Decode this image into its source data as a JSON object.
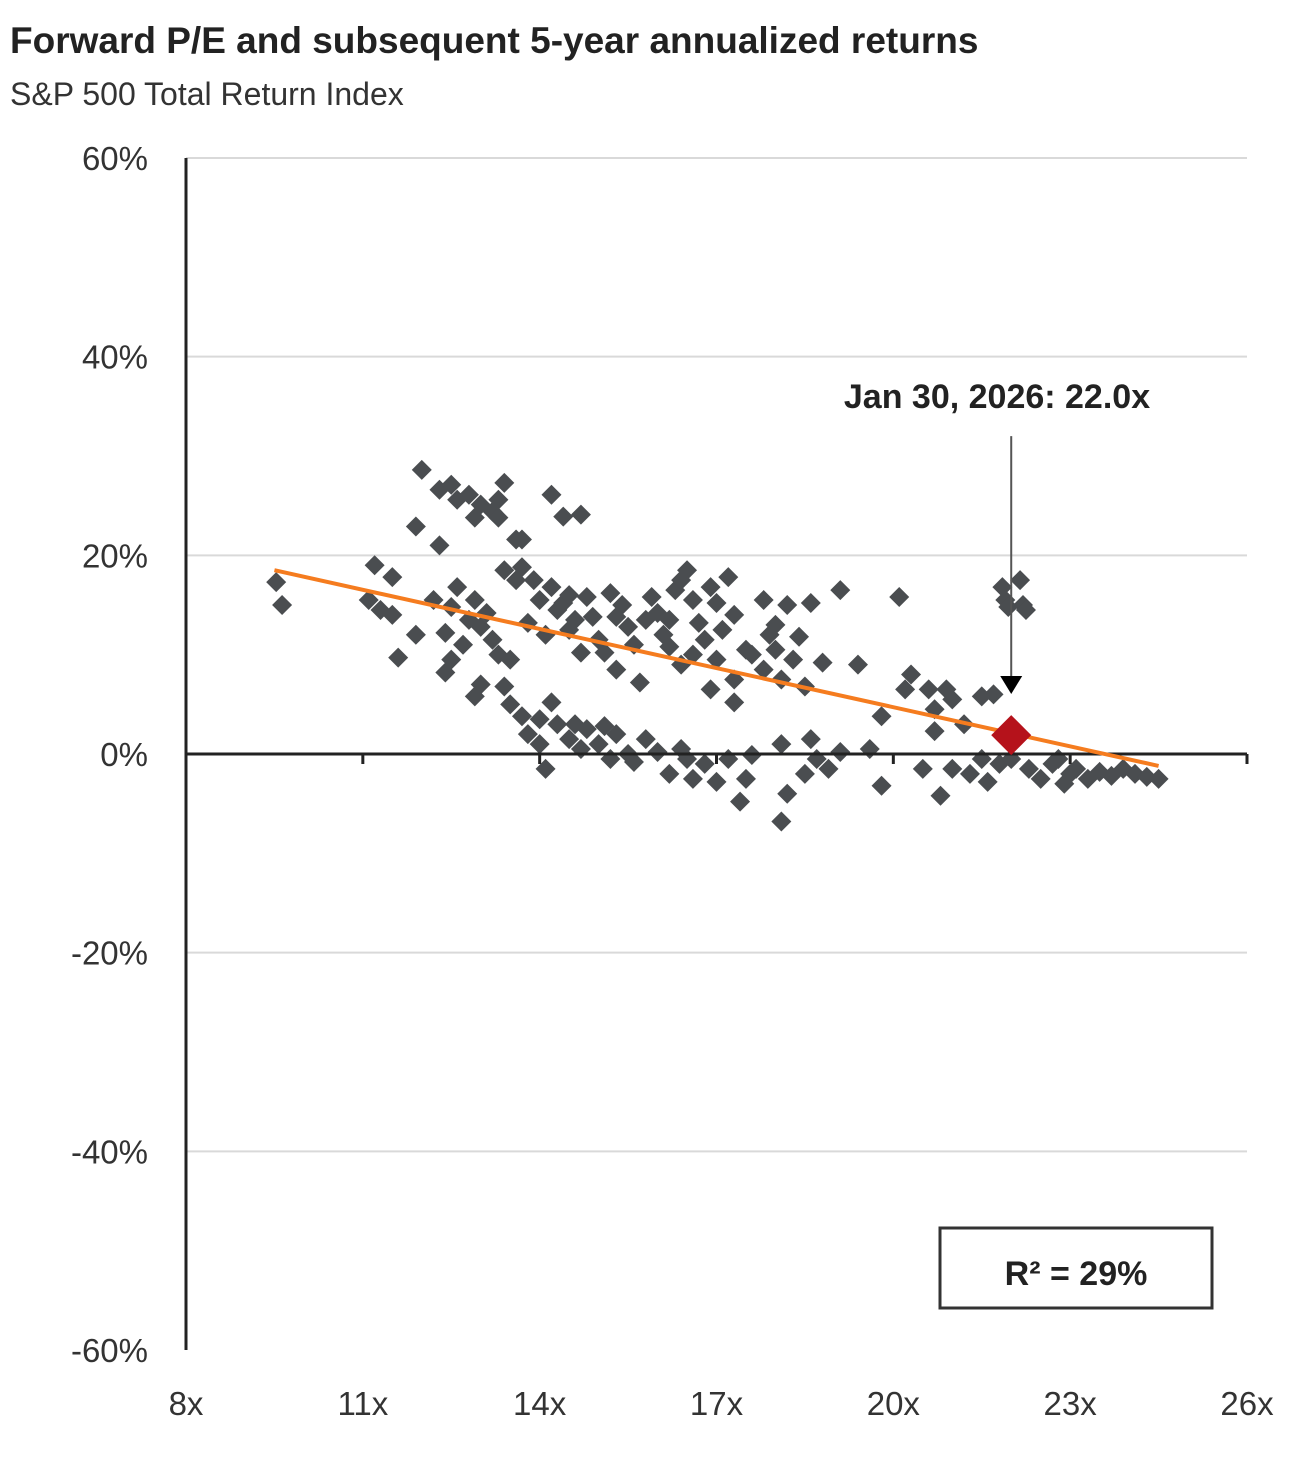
{
  "chart_data": {
    "type": "scatter",
    "title": "Forward P/E and subsequent 5-year annualized returns",
    "subtitle": "S&P 500 Total Return Index",
    "xlabel": "",
    "ylabel": "",
    "xlim": [
      8,
      26
    ],
    "ylim": [
      -60,
      60
    ],
    "x_ticks": [
      8,
      11,
      14,
      17,
      20,
      23,
      26
    ],
    "x_tick_labels": [
      "8x",
      "11x",
      "14x",
      "17x",
      "20x",
      "23x",
      "26x"
    ],
    "y_ticks": [
      60,
      40,
      20,
      0,
      -20,
      -40,
      -60
    ],
    "y_tick_labels": [
      "60%",
      "40%",
      "20%",
      "0%",
      "-20%",
      "-40%",
      "-60%"
    ],
    "grid": true,
    "colors": {
      "points": "#4a4d50",
      "highlight": "#b5121b",
      "trend": "#f57c1f",
      "grid": "#d9d9d9",
      "axis": "#222222"
    },
    "trendline": {
      "x": [
        9.5,
        24.5
      ],
      "y": [
        18.5,
        -1.2
      ]
    },
    "annotation": {
      "text": "Jan 30, 2026:  22.0x",
      "x": 22.0,
      "y": 1.9,
      "arrow_from_y": 32
    },
    "highlight_point": {
      "x": 22.0,
      "y": 1.9
    },
    "r_squared_label": "R²  = 29%",
    "points": [
      [
        9.53,
        17.3
      ],
      [
        9.63,
        15.0
      ],
      [
        11.2,
        19.0
      ],
      [
        11.5,
        17.8
      ],
      [
        11.1,
        15.5
      ],
      [
        11.3,
        14.5
      ],
      [
        11.5,
        14.0
      ],
      [
        11.6,
        9.7
      ],
      [
        11.9,
        22.9
      ],
      [
        12.0,
        28.6
      ],
      [
        12.3,
        21.0
      ],
      [
        12.4,
        8.2
      ],
      [
        11.9,
        12.0
      ],
      [
        12.3,
        26.6
      ],
      [
        12.5,
        27.1
      ],
      [
        12.6,
        25.6
      ],
      [
        12.8,
        26.1
      ],
      [
        13.0,
        25.1
      ],
      [
        13.2,
        24.4
      ],
      [
        13.3,
        25.6
      ],
      [
        13.4,
        27.3
      ],
      [
        13.3,
        23.8
      ],
      [
        13.6,
        21.6
      ],
      [
        13.7,
        21.6
      ],
      [
        12.9,
        23.8
      ],
      [
        14.2,
        26.1
      ],
      [
        14.4,
        23.9
      ],
      [
        14.7,
        24.1
      ],
      [
        12.2,
        15.5
      ],
      [
        12.5,
        14.8
      ],
      [
        12.8,
        13.5
      ],
      [
        12.6,
        16.8
      ],
      [
        12.9,
        15.5
      ],
      [
        13.1,
        14.2
      ],
      [
        13.2,
        11.5
      ],
      [
        12.7,
        11.0
      ],
      [
        13.0,
        12.8
      ],
      [
        12.4,
        12.2
      ],
      [
        13.3,
        10.0
      ],
      [
        13.4,
        18.5
      ],
      [
        13.6,
        17.5
      ],
      [
        13.7,
        18.8
      ],
      [
        13.9,
        17.5
      ],
      [
        14.0,
        15.5
      ],
      [
        14.2,
        16.8
      ],
      [
        14.3,
        14.5
      ],
      [
        14.4,
        15.2
      ],
      [
        14.6,
        13.5
      ],
      [
        14.5,
        16.0
      ],
      [
        14.8,
        15.8
      ],
      [
        14.9,
        13.8
      ],
      [
        15.0,
        11.5
      ],
      [
        15.1,
        10.2
      ],
      [
        15.2,
        16.2
      ],
      [
        15.4,
        15.0
      ],
      [
        15.5,
        12.8
      ],
      [
        15.6,
        11.0
      ],
      [
        15.8,
        13.5
      ],
      [
        15.9,
        15.8
      ],
      [
        16.0,
        14.2
      ],
      [
        16.1,
        12.0
      ],
      [
        16.2,
        10.8
      ],
      [
        16.3,
        16.5
      ],
      [
        16.4,
        17.5
      ],
      [
        16.5,
        18.5
      ],
      [
        16.6,
        15.5
      ],
      [
        16.7,
        13.2
      ],
      [
        16.8,
        11.5
      ],
      [
        16.9,
        16.8
      ],
      [
        17.0,
        15.2
      ],
      [
        17.1,
        12.5
      ],
      [
        17.2,
        17.8
      ],
      [
        17.3,
        14.0
      ],
      [
        17.0,
        9.5
      ],
      [
        17.3,
        7.5
      ],
      [
        17.5,
        10.5
      ],
      [
        17.8,
        15.5
      ],
      [
        17.9,
        12.0
      ],
      [
        18.0,
        10.5
      ],
      [
        18.2,
        15.0
      ],
      [
        18.0,
        13.0
      ],
      [
        18.3,
        9.5
      ],
      [
        18.5,
        6.8
      ],
      [
        18.6,
        15.2
      ],
      [
        19.1,
        16.5
      ],
      [
        18.8,
        9.2
      ],
      [
        19.4,
        9.0
      ],
      [
        19.8,
        3.8
      ],
      [
        20.1,
        15.8
      ],
      [
        20.3,
        8.0
      ],
      [
        20.2,
        6.5
      ],
      [
        20.6,
        6.5
      ],
      [
        20.9,
        6.5
      ],
      [
        20.7,
        4.5
      ],
      [
        21.0,
        5.5
      ],
      [
        21.5,
        5.8
      ],
      [
        21.7,
        6.0
      ],
      [
        20.7,
        2.3
      ],
      [
        21.2,
        3.0
      ],
      [
        13.8,
        13.2
      ],
      [
        14.1,
        12.0
      ],
      [
        14.7,
        10.2
      ],
      [
        15.3,
        8.5
      ],
      [
        15.7,
        7.2
      ],
      [
        16.4,
        9.0
      ],
      [
        16.9,
        6.5
      ],
      [
        17.3,
        5.2
      ],
      [
        13.0,
        7.0
      ],
      [
        12.9,
        5.8
      ],
      [
        13.4,
        6.8
      ],
      [
        17.6,
        10.0
      ],
      [
        17.8,
        8.5
      ],
      [
        16.2,
        13.5
      ],
      [
        15.3,
        13.8
      ],
      [
        12.5,
        9.5
      ],
      [
        13.5,
        9.5
      ],
      [
        14.5,
        12.5
      ],
      [
        16.6,
        10.0
      ],
      [
        18.4,
        11.8
      ],
      [
        18.1,
        7.5
      ],
      [
        13.5,
        5.0
      ],
      [
        13.7,
        3.8
      ],
      [
        13.8,
        2.0
      ],
      [
        14.0,
        1.0
      ],
      [
        14.1,
        -1.5
      ],
      [
        14.2,
        5.2
      ],
      [
        14.3,
        3.0
      ],
      [
        14.5,
        1.5
      ],
      [
        14.7,
        0.5
      ],
      [
        14.8,
        2.5
      ],
      [
        15.0,
        1.0
      ],
      [
        15.2,
        -0.5
      ],
      [
        15.3,
        2.0
      ],
      [
        15.5,
        0.0
      ],
      [
        15.6,
        -0.8
      ],
      [
        15.8,
        1.5
      ],
      [
        16.0,
        0.2
      ],
      [
        16.2,
        -2.0
      ],
      [
        16.4,
        0.5
      ],
      [
        16.6,
        -2.5
      ],
      [
        16.8,
        -1.0
      ],
      [
        17.0,
        -2.8
      ],
      [
        17.2,
        -0.5
      ],
      [
        17.4,
        -4.8
      ],
      [
        17.5,
        -2.5
      ],
      [
        17.6,
        -0.1
      ],
      [
        18.1,
        1.0
      ],
      [
        18.2,
        -4.0
      ],
      [
        18.1,
        -6.8
      ],
      [
        18.5,
        -2.0
      ],
      [
        18.7,
        -0.5
      ],
      [
        18.9,
        -1.5
      ],
      [
        19.1,
        0.2
      ],
      [
        19.6,
        0.5
      ],
      [
        19.8,
        -3.2
      ],
      [
        14.6,
        3.0
      ],
      [
        15.1,
        2.8
      ],
      [
        14.0,
        3.5
      ],
      [
        16.5,
        -0.5
      ],
      [
        18.6,
        1.5
      ],
      [
        20.5,
        -1.5
      ],
      [
        20.8,
        -4.2
      ],
      [
        21.0,
        -1.5
      ],
      [
        21.3,
        -2.0
      ],
      [
        21.5,
        -0.5
      ],
      [
        21.6,
        -2.8
      ],
      [
        21.8,
        -1.0
      ],
      [
        22.0,
        -0.5
      ],
      [
        22.3,
        -1.5
      ],
      [
        22.5,
        -2.5
      ],
      [
        22.7,
        -1.0
      ],
      [
        22.9,
        -3.0
      ],
      [
        23.1,
        -1.5
      ],
      [
        23.3,
        -2.5
      ],
      [
        23.5,
        -1.8
      ],
      [
        23.7,
        -2.2
      ],
      [
        23.9,
        -1.5
      ],
      [
        24.1,
        -2.0
      ],
      [
        24.3,
        -2.3
      ],
      [
        24.5,
        -2.5
      ],
      [
        22.8,
        -0.5
      ],
      [
        23.0,
        -2.0
      ],
      [
        21.9,
        15.5
      ],
      [
        21.85,
        16.8
      ],
      [
        22.15,
        17.5
      ],
      [
        22.2,
        15.0
      ],
      [
        22.25,
        14.5
      ],
      [
        21.95,
        14.8
      ]
    ]
  }
}
